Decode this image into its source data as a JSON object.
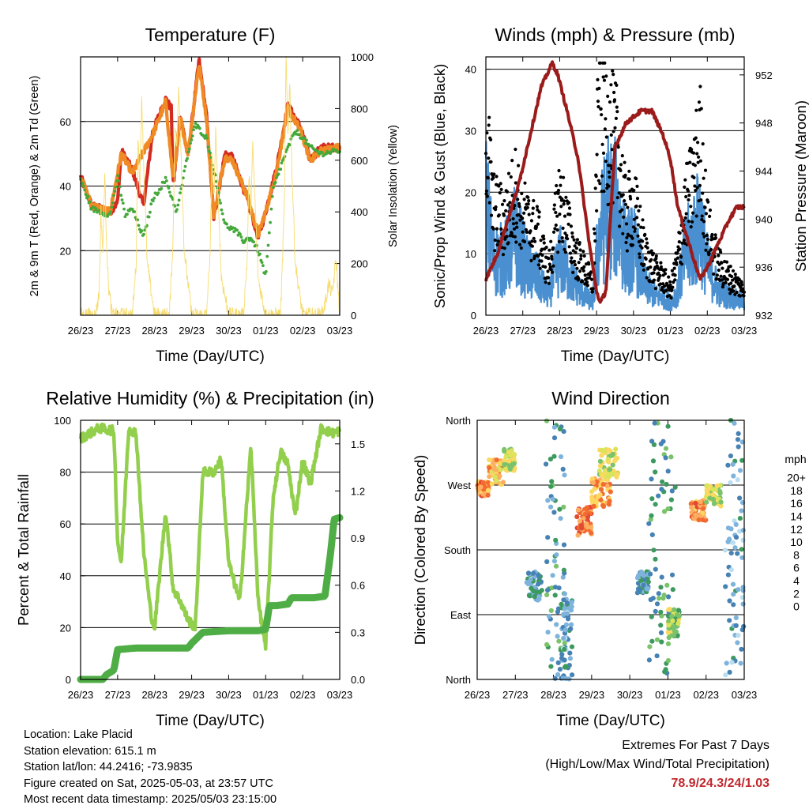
{
  "chart_data": [
    {
      "type": "line",
      "title": "Temperature (F)",
      "xlabel": "Time (Day/UTC)",
      "ylabel": "2m & 9m T (Red, Orange) & 2m Td (Green)",
      "y2label": "Solar Insolation (Yellow)",
      "x_ticks": [
        "26/23",
        "27/23",
        "28/23",
        "29/23",
        "30/23",
        "01/23",
        "02/23",
        "03/23"
      ],
      "x_range_days": [
        0,
        7
      ],
      "ylim": [
        0,
        80
      ],
      "y_ticks": [
        20,
        40,
        60
      ],
      "y2lim": [
        0,
        1000
      ],
      "y2_ticks": [
        0,
        200,
        400,
        600,
        800,
        1000
      ],
      "grid": true,
      "series": [
        {
          "name": "2m T",
          "color": "#d42a20",
          "axis": "left",
          "x": [
            0,
            0.3,
            0.8,
            1.0,
            1.1,
            1.4,
            1.7,
            1.95,
            2.3,
            2.45,
            2.5,
            2.7,
            2.9,
            3.2,
            3.4,
            3.6,
            3.9,
            4.1,
            4.5,
            4.8,
            5.0,
            5.3,
            5.6,
            5.95,
            6.2,
            6.5,
            7.0
          ],
          "y": [
            43,
            34,
            32,
            35,
            51,
            45,
            34,
            57,
            67,
            64,
            40,
            62,
            49,
            79,
            62,
            30,
            50,
            49,
            36,
            24,
            32,
            46,
            65,
            58,
            48,
            52,
            52
          ]
        },
        {
          "name": "9m T",
          "color": "#f08a24",
          "axis": "left",
          "x": [
            0,
            0.3,
            0.8,
            1.1,
            1.4,
            1.95,
            2.3,
            2.5,
            2.7,
            2.9,
            3.2,
            3.4,
            3.6,
            3.9,
            4.1,
            4.5,
            4.8,
            5.0,
            5.3,
            5.6,
            5.95,
            6.2,
            6.5,
            7.0
          ],
          "y": [
            43,
            34,
            32,
            50,
            44,
            56,
            66,
            42,
            61,
            50,
            78,
            61,
            31,
            49,
            48,
            37,
            25,
            32,
            45,
            64,
            57,
            48,
            51,
            52
          ]
        },
        {
          "name": "2m Td",
          "color": "#44a83a",
          "axis": "left",
          "x": [
            0,
            0.3,
            0.8,
            1.0,
            1.2,
            1.4,
            1.7,
            1.95,
            2.3,
            2.6,
            2.9,
            3.1,
            3.4,
            3.6,
            3.9,
            4.2,
            4.4,
            4.6,
            4.8,
            5.0,
            5.2,
            5.5,
            5.8,
            6.0,
            6.2,
            6.5,
            7.0
          ],
          "y": [
            42,
            33,
            31,
            43,
            31,
            33,
            24,
            36,
            42,
            32,
            50,
            59,
            55,
            45,
            28,
            26,
            23,
            24,
            20,
            12,
            39,
            49,
            57,
            55,
            52,
            50,
            51
          ]
        },
        {
          "name": "Solar Insolation",
          "color": "#f7dc6f",
          "axis": "right",
          "x": [
            0,
            0.4,
            0.5,
            0.55,
            0.6,
            0.65,
            0.7,
            0.75,
            0.85,
            1.0,
            1.4,
            1.5,
            1.55,
            1.6,
            1.65,
            1.7,
            1.8,
            2.0,
            2.4,
            2.5,
            2.55,
            2.6,
            2.65,
            2.7,
            2.8,
            3.0,
            3.4,
            3.5,
            3.55,
            3.6,
            3.65,
            3.7,
            3.8,
            4.0,
            4.4,
            4.5,
            4.55,
            4.6,
            4.65,
            4.7,
            4.8,
            5.0,
            5.4,
            5.5,
            5.55,
            5.6,
            5.65,
            5.7,
            5.8,
            6.0,
            6.5,
            6.6,
            6.7,
            6.8,
            6.9,
            7.0
          ],
          "y": [
            0,
            0,
            80,
            400,
            250,
            550,
            300,
            120,
            0,
            0,
            0,
            200,
            700,
            500,
            850,
            600,
            200,
            0,
            0,
            300,
            750,
            650,
            880,
            700,
            250,
            0,
            0,
            250,
            600,
            450,
            700,
            520,
            150,
            0,
            0,
            220,
            550,
            400,
            650,
            480,
            140,
            0,
            0,
            400,
            1000,
            700,
            900,
            600,
            200,
            0,
            0,
            40,
            120,
            80,
            220,
            0
          ]
        }
      ]
    },
    {
      "type": "line",
      "title": "Winds (mph) & Pressure (mb)",
      "xlabel": "Time (Day/UTC)",
      "ylabel": "Sonic/Prop Wind & Gust (Blue, Black)",
      "y2label": "Station Pressure (Maroon)",
      "x_ticks": [
        "26/23",
        "27/23",
        "28/23",
        "29/23",
        "30/23",
        "01/23",
        "02/23",
        "03/23"
      ],
      "x_range_days": [
        0,
        7
      ],
      "ylim": [
        0,
        42
      ],
      "y_ticks": [
        0,
        10,
        20,
        30,
        40
      ],
      "y2lim": [
        932,
        953.5
      ],
      "y2_ticks": [
        932,
        936,
        940,
        944,
        948,
        952
      ],
      "grid": true,
      "series": [
        {
          "name": "Gust",
          "color": "#000000",
          "axis": "left",
          "x": [
            0,
            0.2,
            0.5,
            0.8,
            1.1,
            1.4,
            1.7,
            2.0,
            2.4,
            2.7,
            2.9,
            3.05,
            3.3,
            3.55,
            3.8,
            4.0,
            4.3,
            4.6,
            4.8,
            5.0,
            5.2,
            5.4,
            5.6,
            5.8,
            6.0,
            6.3,
            6.6,
            7.0
          ],
          "y": [
            30,
            17,
            15,
            20,
            15,
            13,
            7,
            19,
            10,
            7,
            5,
            32,
            30,
            27,
            16,
            18,
            10,
            7,
            6,
            4,
            9,
            17,
            21,
            28,
            14,
            8,
            6,
            4
          ]
        },
        {
          "name": "Wind",
          "color": "#4a90d0",
          "axis": "left",
          "x": [
            0,
            0.2,
            0.5,
            0.8,
            1.1,
            1.4,
            1.7,
            2.0,
            2.4,
            2.7,
            2.9,
            3.05,
            3.3,
            3.55,
            3.8,
            4.0,
            4.3,
            4.6,
            4.8,
            5.0,
            5.2,
            5.4,
            5.6,
            5.8,
            6.0,
            6.3,
            6.6,
            7.0
          ],
          "y": [
            18,
            9,
            9,
            13,
            8,
            6,
            3,
            9,
            5,
            3,
            2,
            12,
            18,
            17,
            10,
            11,
            5,
            3,
            3,
            2,
            4,
            10,
            12,
            15,
            8,
            4,
            3,
            2
          ]
        },
        {
          "name": "Station Pressure",
          "color": "#9b1b1b",
          "axis": "right",
          "x": [
            0,
            0.3,
            0.6,
            0.9,
            1.2,
            1.5,
            1.8,
            1.95,
            2.2,
            2.5,
            2.8,
            3.0,
            3.1,
            3.25,
            3.5,
            3.8,
            4.2,
            4.5,
            4.8,
            5.0,
            5.2,
            5.5,
            5.8,
            6.0,
            6.3,
            6.6,
            6.8,
            7.0
          ],
          "y": [
            935,
            937,
            940,
            943,
            947,
            951,
            953,
            952,
            949,
            945,
            938,
            934,
            933,
            934,
            946,
            948,
            949,
            949,
            947,
            945,
            941,
            938,
            935,
            936,
            938,
            940,
            941,
            941
          ]
        }
      ]
    },
    {
      "type": "line",
      "title": "Relative Humidity (%) & Precipitation (in)",
      "xlabel": "Time (Day/UTC)",
      "ylabel": "Percent & Total Rainfall",
      "x_ticks": [
        "26/23",
        "27/23",
        "28/23",
        "29/23",
        "30/23",
        "01/23",
        "02/23",
        "03/23"
      ],
      "x_range_days": [
        0,
        7
      ],
      "ylim": [
        0,
        100
      ],
      "y_ticks": [
        0,
        20,
        40,
        60,
        80,
        100
      ],
      "y2lim": [
        0,
        1.65
      ],
      "y2_ticks": [
        0.0,
        0.3,
        0.6,
        0.9,
        1.2,
        1.5
      ],
      "grid": true,
      "series": [
        {
          "name": "Relative Humidity",
          "color": "#92cf4c",
          "axis": "left",
          "x": [
            0,
            0.5,
            0.9,
            1.0,
            1.1,
            1.3,
            1.5,
            1.7,
            1.9,
            2.0,
            2.3,
            2.5,
            2.7,
            2.9,
            3.1,
            3.3,
            3.6,
            3.8,
            4.0,
            4.3,
            4.6,
            4.8,
            5.0,
            5.2,
            5.4,
            5.6,
            5.8,
            6.0,
            6.2,
            6.5,
            6.8,
            7.0
          ],
          "y": [
            93,
            97,
            96,
            53,
            45,
            97,
            95,
            50,
            25,
            20,
            65,
            35,
            30,
            23,
            20,
            80,
            80,
            85,
            45,
            30,
            90,
            30,
            12,
            70,
            88,
            83,
            63,
            85,
            75,
            97,
            95,
            96
          ]
        },
        {
          "name": "Total Rainfall",
          "color": "#4fad45",
          "axis": "right",
          "x": [
            0,
            0.3,
            0.6,
            0.7,
            0.9,
            1.0,
            1.5,
            2.0,
            2.5,
            2.9,
            3.0,
            3.3,
            4.0,
            4.5,
            4.8,
            5.0,
            5.1,
            5.3,
            5.6,
            5.7,
            6.0,
            6.3,
            6.6,
            6.75,
            6.85,
            7.0
          ],
          "y": [
            0.0,
            0.0,
            0.0,
            0.03,
            0.06,
            0.19,
            0.2,
            0.2,
            0.2,
            0.2,
            0.23,
            0.3,
            0.31,
            0.31,
            0.31,
            0.32,
            0.47,
            0.47,
            0.48,
            0.52,
            0.52,
            0.52,
            0.53,
            0.8,
            1.02,
            1.03
          ]
        }
      ]
    },
    {
      "type": "scatter",
      "title": "Wind Direction",
      "xlabel": "Time (Day/UTC)",
      "ylabel": "Direction (Colored By Speed)",
      "x_ticks": [
        "26/23",
        "27/23",
        "28/23",
        "29/23",
        "30/23",
        "01/23",
        "02/23",
        "03/23"
      ],
      "x_range_days": [
        0,
        7
      ],
      "y_categories": [
        "North",
        "East",
        "South",
        "West",
        "North"
      ],
      "ylim_deg": [
        0,
        360
      ],
      "grid": true,
      "colorbar_label": "mph",
      "colorbar_ticks": [
        "20+",
        "18",
        "16",
        "14",
        "12",
        "10",
        "8",
        "6",
        "4",
        "2",
        "0"
      ],
      "colorbar_colors": [
        "#b2182b",
        "#ca2e2a",
        "#e34a33",
        "#f26b30",
        "#fdae61",
        "#fdd85e",
        "#d9e45b",
        "#7ac36a",
        "#3d9a5e",
        "#4682b4",
        "#7eb3dc",
        "#b9def2"
      ],
      "clusters": [
        {
          "x": [
            0,
            0.3
          ],
          "deg": [
            255,
            275
          ],
          "speed": 15
        },
        {
          "x": [
            0.3,
            0.7
          ],
          "deg": [
            270,
            305
          ],
          "speed": 13
        },
        {
          "x": [
            0.7,
            1.0
          ],
          "deg": [
            290,
            320
          ],
          "speed": 10
        },
        {
          "x": [
            1.3,
            1.7
          ],
          "deg": [
            110,
            150
          ],
          "speed": 4
        },
        {
          "x": [
            1.8,
            2.3
          ],
          "deg": [
            0,
            360
          ],
          "speed": 5
        },
        {
          "x": [
            2.2,
            2.5
          ],
          "deg": [
            0,
            120
          ],
          "speed": 3
        },
        {
          "x": [
            2.6,
            3.0
          ],
          "deg": [
            200,
            240
          ],
          "speed": 16
        },
        {
          "x": [
            3.0,
            3.5
          ],
          "deg": [
            240,
            280
          ],
          "speed": 14
        },
        {
          "x": [
            3.2,
            3.7
          ],
          "deg": [
            280,
            320
          ],
          "speed": 10
        },
        {
          "x": [
            4.2,
            4.5
          ],
          "deg": [
            120,
            150
          ],
          "speed": 4
        },
        {
          "x": [
            4.5,
            5.2
          ],
          "deg": [
            0,
            360
          ],
          "speed": 6
        },
        {
          "x": [
            5.0,
            5.3
          ],
          "deg": [
            60,
            100
          ],
          "speed": 9
        },
        {
          "x": [
            5.6,
            6.0
          ],
          "deg": [
            220,
            250
          ],
          "speed": 15
        },
        {
          "x": [
            6.0,
            6.4
          ],
          "deg": [
            240,
            270
          ],
          "speed": 10
        },
        {
          "x": [
            6.5,
            7.0
          ],
          "deg": [
            0,
            360
          ],
          "speed": 3
        }
      ]
    }
  ],
  "footer": {
    "location": "Location: Lake Placid",
    "elevation": "Station elevation: 615.1 m",
    "latlon": "Station lat/lon: 44.2416; -73.9835",
    "created": "Figure created on Sat, 2025-05-03, at 23:57 UTC",
    "timestamp": "Most recent data timestamp: 2025/05/03 23:15:00"
  },
  "extremes": {
    "title": "Extremes For Past 7 Days",
    "subtitle": "(High/Low/Max Wind/Total Precipitation)",
    "values": "78.9/24.3/24/1.03"
  }
}
